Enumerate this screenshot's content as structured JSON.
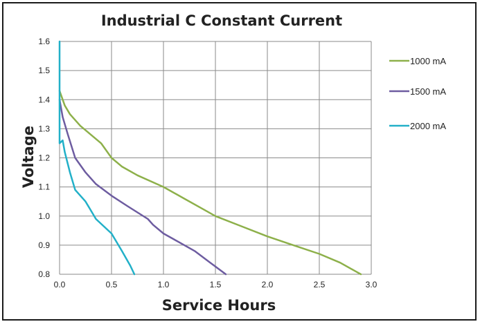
{
  "chart_data": {
    "type": "line",
    "title": "Industrial C Constant Current",
    "xlabel": "Service Hours",
    "ylabel": "Voltage",
    "xlim": [
      0,
      3.0
    ],
    "ylim": [
      0.8,
      1.6
    ],
    "x_ticks": [
      "0.0",
      "0.5",
      "1.0",
      "1.5",
      "2.0",
      "2.5",
      "3.0"
    ],
    "y_ticks": [
      "0.8",
      "0.9",
      "1.0",
      "1.1",
      "1.2",
      "1.3",
      "1.4",
      "1.5",
      "1.6"
    ],
    "grid": true,
    "legend_position": "right",
    "series": [
      {
        "name": "1000 mA",
        "color": "#8db04a",
        "points": [
          [
            0.0,
            1.43
          ],
          [
            0.05,
            1.38
          ],
          [
            0.1,
            1.35
          ],
          [
            0.2,
            1.31
          ],
          [
            0.3,
            1.28
          ],
          [
            0.4,
            1.25
          ],
          [
            0.5,
            1.2
          ],
          [
            0.6,
            1.17
          ],
          [
            0.75,
            1.14
          ],
          [
            1.0,
            1.1
          ],
          [
            1.2,
            1.06
          ],
          [
            1.4,
            1.02
          ],
          [
            1.5,
            1.0
          ],
          [
            1.75,
            0.965
          ],
          [
            2.0,
            0.93
          ],
          [
            2.25,
            0.9
          ],
          [
            2.5,
            0.87
          ],
          [
            2.7,
            0.84
          ],
          [
            2.85,
            0.81
          ],
          [
            2.9,
            0.8
          ]
        ]
      },
      {
        "name": "1500 mA",
        "color": "#6d5ca0",
        "points": [
          [
            0.0,
            1.4
          ],
          [
            0.03,
            1.34
          ],
          [
            0.08,
            1.28
          ],
          [
            0.15,
            1.2
          ],
          [
            0.25,
            1.15
          ],
          [
            0.35,
            1.11
          ],
          [
            0.5,
            1.07
          ],
          [
            0.65,
            1.035
          ],
          [
            0.85,
            0.99
          ],
          [
            0.9,
            0.97
          ],
          [
            1.0,
            0.94
          ],
          [
            1.1,
            0.92
          ],
          [
            1.3,
            0.88
          ],
          [
            1.45,
            0.84
          ],
          [
            1.6,
            0.8
          ]
        ]
      },
      {
        "name": "2000 mA",
        "color": "#22b0c8",
        "points": [
          [
            0.0,
            1.6
          ],
          [
            0.0,
            1.25
          ],
          [
            0.03,
            1.26
          ],
          [
            0.05,
            1.22
          ],
          [
            0.1,
            1.15
          ],
          [
            0.15,
            1.09
          ],
          [
            0.25,
            1.05
          ],
          [
            0.35,
            0.99
          ],
          [
            0.5,
            0.94
          ],
          [
            0.6,
            0.88
          ],
          [
            0.68,
            0.83
          ],
          [
            0.72,
            0.8
          ]
        ]
      }
    ]
  }
}
